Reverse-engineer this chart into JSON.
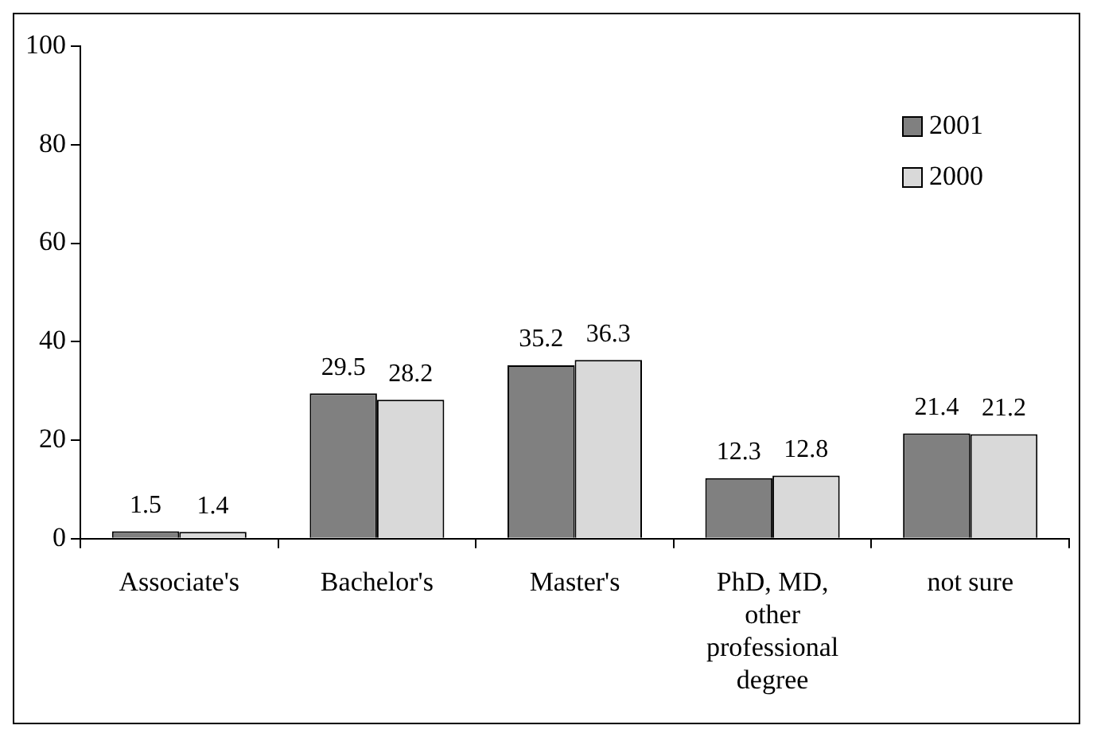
{
  "chart_data": {
    "type": "bar",
    "categories": [
      "Associate's",
      "Bachelor's",
      "Master's",
      "PhD, MD, other professional degree",
      "not sure"
    ],
    "series": [
      {
        "name": "2001",
        "color": "#808080",
        "values": [
          1.5,
          29.5,
          35.2,
          12.3,
          21.4
        ]
      },
      {
        "name": "2000",
        "color": "#d9d9d9",
        "values": [
          1.4,
          28.2,
          36.3,
          12.8,
          21.2
        ]
      }
    ],
    "ylim": [
      0,
      100
    ],
    "yticks": [
      0,
      20,
      40,
      60,
      80,
      100
    ],
    "grid": false,
    "legend": "top right",
    "data_labels": true
  }
}
